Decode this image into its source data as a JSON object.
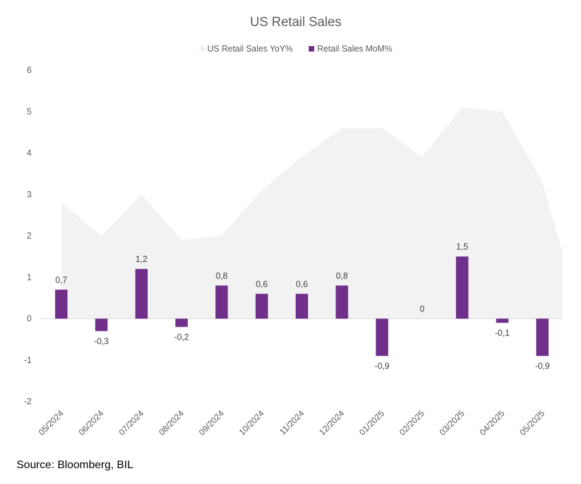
{
  "chart_data": {
    "type": "bar",
    "title": "US Retail Sales",
    "xlabel": "",
    "ylabel": "",
    "ylim": [
      -2,
      6
    ],
    "yticks": [
      6,
      5,
      4,
      3,
      2,
      1,
      0,
      -1,
      -2
    ],
    "grid": false,
    "legend_position": "top",
    "categories": [
      "05/2024",
      "06/2024",
      "07/2024",
      "08/2024",
      "09/2024",
      "10/2024",
      "11/2024",
      "12/2024",
      "01/2025",
      "02/2025",
      "03/2025",
      "04/2025",
      "05/2025"
    ],
    "series": [
      {
        "name": "US Retail Sales YoY%",
        "type": "area",
        "color": "#F2F2F2",
        "values": [
          2.8,
          2.0,
          3.0,
          1.9,
          2.0,
          3.1,
          3.9,
          4.6,
          4.6,
          3.9,
          5.1,
          5.0,
          3.3
        ],
        "edge_value": 1.6
      },
      {
        "name": "Retail Sales MoM%",
        "type": "bar",
        "color": "#702F8A",
        "values": [
          0.7,
          -0.3,
          1.2,
          -0.2,
          0.8,
          0.6,
          0.6,
          0.8,
          -0.9,
          0,
          1.5,
          -0.1,
          -0.9
        ],
        "labels": [
          "0,7",
          "-0,3",
          "1,2",
          "-0,2",
          "0,8",
          "0,6",
          "0,6",
          "0,8",
          "-0,9",
          "0",
          "1,5",
          "-0,1",
          "-0,9"
        ]
      }
    ]
  },
  "source": "Source: Bloomberg, BIL"
}
